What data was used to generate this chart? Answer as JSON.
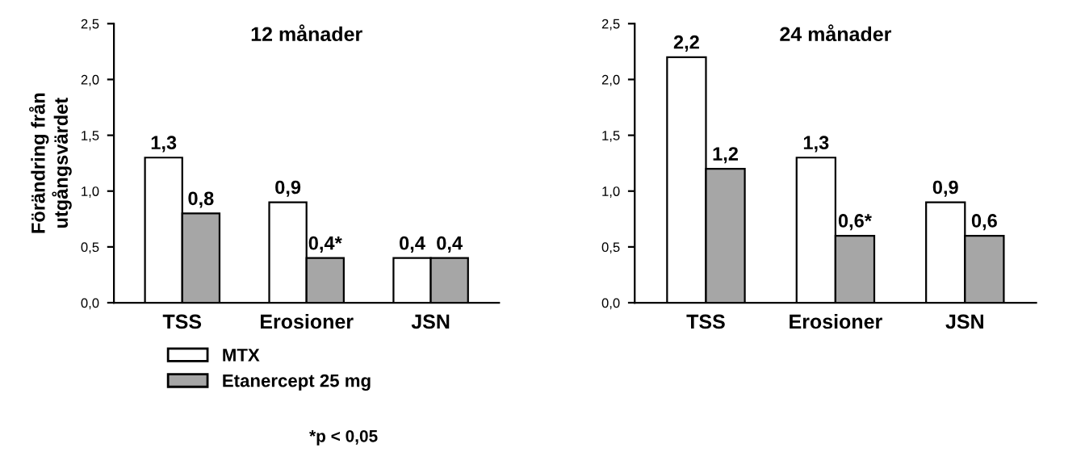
{
  "chart_data": [
    {
      "type": "bar",
      "title": "12 månader",
      "ylabel": "Förändring från\nutgångsvärdet",
      "categories": [
        "TSS",
        "Erosioner",
        "JSN"
      ],
      "series": [
        {
          "name": "MTX",
          "color": "#ffffff",
          "values": [
            1.3,
            0.9,
            0.4
          ],
          "value_labels": [
            "1,3",
            "0,9",
            "0,4"
          ]
        },
        {
          "name": "Etanercept 25 mg",
          "color": "#a6a6a6",
          "values": [
            0.8,
            0.4,
            0.4
          ],
          "value_labels": [
            "0,8",
            "0,4*",
            "0,4"
          ]
        }
      ],
      "ylim": [
        0,
        2.5
      ],
      "yticks": [
        {
          "value": 0,
          "label": "0,0"
        },
        {
          "value": 0.5,
          "label": "0,5"
        },
        {
          "value": 1,
          "label": "1,0"
        },
        {
          "value": 1.5,
          "label": "1,5"
        },
        {
          "value": 2,
          "label": "2,0"
        },
        {
          "value": 2.5,
          "label": "2,5"
        }
      ],
      "legend": "bottom",
      "annotations": [
        "*p < 0,05"
      ]
    },
    {
      "type": "bar",
      "title": "24 månader",
      "categories": [
        "TSS",
        "Erosioner",
        "JSN"
      ],
      "series": [
        {
          "color": "#ffffff",
          "values": [
            2.2,
            1.3,
            0.9
          ],
          "value_labels": [
            "2,2",
            "1,3",
            "0,9"
          ]
        },
        {
          "color": "#a6a6a6",
          "values": [
            1.2,
            0.6,
            0.6
          ],
          "value_labels": [
            "1,2",
            "0,6*",
            "0,6"
          ]
        }
      ],
      "ylim": [
        0,
        2.5
      ],
      "yticks": [
        {
          "value": 0,
          "label": "0,0"
        },
        {
          "value": 0.5,
          "label": "0,5"
        },
        {
          "value": 1,
          "label": "1,0"
        },
        {
          "value": 1.5,
          "label": "1,5"
        },
        {
          "value": 2,
          "label": "2,0"
        },
        {
          "value": 2.5,
          "label": "2,5"
        }
      ]
    }
  ]
}
